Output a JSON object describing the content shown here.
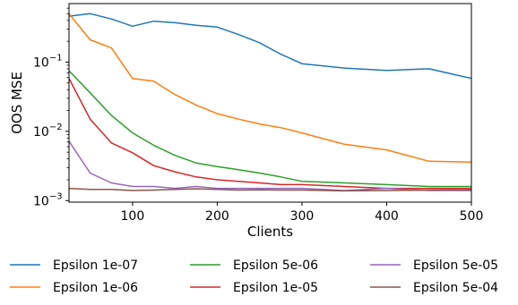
{
  "chart_data": {
    "type": "line",
    "xlabel": "Clients",
    "ylabel": "OOS MSE",
    "xlim": [
      25,
      500
    ],
    "ylim": [
      0.00095,
      0.7
    ],
    "yscale": "log",
    "grid": false,
    "legend_placement": "below",
    "x_ticks": [
      {
        "value": 100,
        "label": "100"
      },
      {
        "value": 200,
        "label": "200"
      },
      {
        "value": 300,
        "label": "300"
      },
      {
        "value": 400,
        "label": "400"
      },
      {
        "value": 500,
        "label": "500"
      }
    ],
    "y_ticks": [
      {
        "value": 0.1,
        "base": "10",
        "exp": "−1"
      },
      {
        "value": 0.01,
        "base": "10",
        "exp": "−2"
      },
      {
        "value": 0.001,
        "base": "10",
        "exp": "−3"
      }
    ],
    "x": [
      25,
      50,
      75,
      100,
      125,
      150,
      175,
      200,
      225,
      250,
      275,
      300,
      350,
      400,
      450,
      500
    ],
    "series": [
      {
        "name": "Epsilon 1e-07",
        "color": "#1f77b4",
        "values": [
          0.46,
          0.5,
          0.42,
          0.33,
          0.39,
          0.37,
          0.34,
          0.32,
          0.25,
          0.19,
          0.13,
          0.095,
          0.082,
          0.076,
          0.08,
          0.058
        ]
      },
      {
        "name": "Epsilon 1e-06",
        "color": "#ff7f0e",
        "values": [
          0.5,
          0.21,
          0.16,
          0.058,
          0.053,
          0.034,
          0.024,
          0.018,
          0.015,
          0.0128,
          0.0113,
          0.0095,
          0.0065,
          0.0054,
          0.0037,
          0.0036
        ]
      },
      {
        "name": "Epsilon 5e-06",
        "color": "#2ca02c",
        "values": [
          0.075,
          0.036,
          0.017,
          0.0095,
          0.0063,
          0.0045,
          0.0035,
          0.0031,
          0.0028,
          0.0025,
          0.0022,
          0.0019,
          0.0018,
          0.0017,
          0.0016,
          0.0016
        ]
      },
      {
        "name": "Epsilon 1e-05",
        "color": "#d62728",
        "values": [
          0.058,
          0.015,
          0.0068,
          0.0049,
          0.0032,
          0.0026,
          0.0022,
          0.002,
          0.0019,
          0.0018,
          0.0017,
          0.0017,
          0.0016,
          0.0015,
          0.0015,
          0.0015
        ]
      },
      {
        "name": "Epsilon 5e-05",
        "color": "#9467bd",
        "values": [
          0.0072,
          0.0025,
          0.0018,
          0.0016,
          0.0016,
          0.0015,
          0.0016,
          0.0015,
          0.0015,
          0.0015,
          0.0015,
          0.0015,
          0.0014,
          0.0015,
          0.0014,
          0.0014
        ]
      },
      {
        "name": "Epsilon 5e-04",
        "color": "#8c564b",
        "values": [
          0.0015,
          0.00145,
          0.00145,
          0.0014,
          0.00142,
          0.00145,
          0.00148,
          0.00145,
          0.00142,
          0.00143,
          0.00142,
          0.00142,
          0.00138,
          0.0014,
          0.00142,
          0.00143
        ]
      }
    ]
  }
}
